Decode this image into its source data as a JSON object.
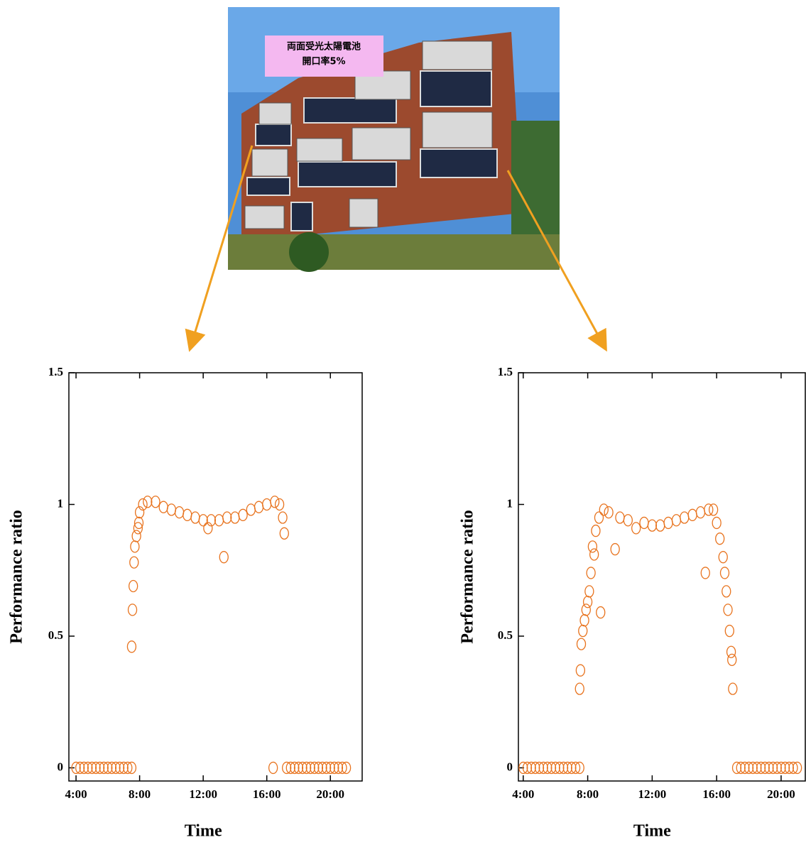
{
  "photo": {
    "label": [
      "両面受光太陽電池",
      "開口率5%"
    ]
  },
  "chart_data": [
    {
      "type": "scatter",
      "x_label": "Time",
      "y_label": "Performance ratio",
      "color": "#e8731e",
      "xlim": [
        3.55,
        22.0
      ],
      "ylim": [
        -0.05,
        1.5
      ],
      "xticks": [
        {
          "value": 4,
          "label": "4:00"
        },
        {
          "value": 8,
          "label": "8:00"
        },
        {
          "value": 12,
          "label": "12:00"
        },
        {
          "value": 16,
          "label": "16:00"
        },
        {
          "value": 20,
          "label": "20:00"
        }
      ],
      "yticks": [
        0,
        0.5,
        1,
        1.5
      ],
      "x": [
        4,
        4.25,
        4.5,
        4.75,
        5,
        5.25,
        5.5,
        5.75,
        6,
        6.25,
        6.5,
        6.75,
        7,
        7.25,
        7.5,
        7.5,
        7.55,
        7.6,
        7.65,
        7.7,
        7.8,
        7.9,
        7.95,
        8.0,
        8.2,
        8.5,
        9,
        9.5,
        10,
        10.5,
        11,
        11.5,
        12,
        12.3,
        12.5,
        13,
        13.3,
        13.5,
        14,
        14.5,
        15,
        15.5,
        16,
        16.4,
        16.5,
        16.8,
        17,
        17.1,
        17.25,
        17.5,
        17.75,
        18,
        18.25,
        18.5,
        18.75,
        19,
        19.25,
        19.5,
        19.75,
        20,
        20.25,
        20.5,
        20.75,
        21
      ],
      "values": [
        0,
        0,
        0,
        0,
        0,
        0,
        0,
        0,
        0,
        0,
        0,
        0,
        0,
        0,
        0,
        0.46,
        0.6,
        0.69,
        0.78,
        0.84,
        0.88,
        0.91,
        0.93,
        0.97,
        1.0,
        1.01,
        1.01,
        0.99,
        0.98,
        0.97,
        0.96,
        0.95,
        0.94,
        0.91,
        0.94,
        0.94,
        0.8,
        0.95,
        0.95,
        0.96,
        0.98,
        0.99,
        1.0,
        0,
        1.01,
        1.0,
        0.95,
        0.89,
        0,
        0,
        0,
        0,
        0,
        0,
        0,
        0,
        0,
        0,
        0,
        0,
        0,
        0,
        0,
        0
      ]
    },
    {
      "type": "scatter",
      "x_label": "Time",
      "y_label": "Performance ratio",
      "color": "#e8731e",
      "xlim": [
        3.7,
        21.5
      ],
      "ylim": [
        -0.05,
        1.5
      ],
      "xticks": [
        {
          "value": 4,
          "label": "4:00"
        },
        {
          "value": 8,
          "label": "8:00"
        },
        {
          "value": 12,
          "label": "12:00"
        },
        {
          "value": 16,
          "label": "16:00"
        },
        {
          "value": 20,
          "label": "20:00"
        }
      ],
      "yticks": [
        0,
        0.5,
        1,
        1.5
      ],
      "x": [
        4,
        4.25,
        4.5,
        4.75,
        5,
        5.25,
        5.5,
        5.75,
        6,
        6.25,
        6.5,
        6.75,
        7,
        7.25,
        7.5,
        7.5,
        7.55,
        7.6,
        7.7,
        7.8,
        7.9,
        8.0,
        8.1,
        8.2,
        8.3,
        8.4,
        8.5,
        8.7,
        8.8,
        9,
        9.3,
        9.7,
        10,
        10.5,
        11,
        11.5,
        12,
        12.5,
        13,
        13.5,
        14,
        14.5,
        15,
        15.3,
        15.5,
        15.8,
        16,
        16.2,
        16.4,
        16.5,
        16.6,
        16.7,
        16.8,
        16.9,
        16.95,
        17,
        17.25,
        17.5,
        17.75,
        18,
        18.25,
        18.5,
        18.75,
        19,
        19.25,
        19.5,
        19.75,
        20,
        20.25,
        20.5,
        20.75,
        21
      ],
      "values": [
        0,
        0,
        0,
        0,
        0,
        0,
        0,
        0,
        0,
        0,
        0,
        0,
        0,
        0,
        0,
        0.3,
        0.37,
        0.47,
        0.52,
        0.56,
        0.6,
        0.63,
        0.67,
        0.74,
        0.84,
        0.81,
        0.9,
        0.95,
        0.59,
        0.98,
        0.97,
        0.83,
        0.95,
        0.94,
        0.91,
        0.93,
        0.92,
        0.92,
        0.93,
        0.94,
        0.95,
        0.96,
        0.97,
        0.74,
        0.98,
        0.98,
        0.93,
        0.87,
        0.8,
        0.74,
        0.67,
        0.6,
        0.52,
        0.44,
        0.41,
        0.3,
        0,
        0,
        0,
        0,
        0,
        0,
        0,
        0,
        0,
        0,
        0,
        0,
        0,
        0,
        0,
        0
      ]
    }
  ]
}
